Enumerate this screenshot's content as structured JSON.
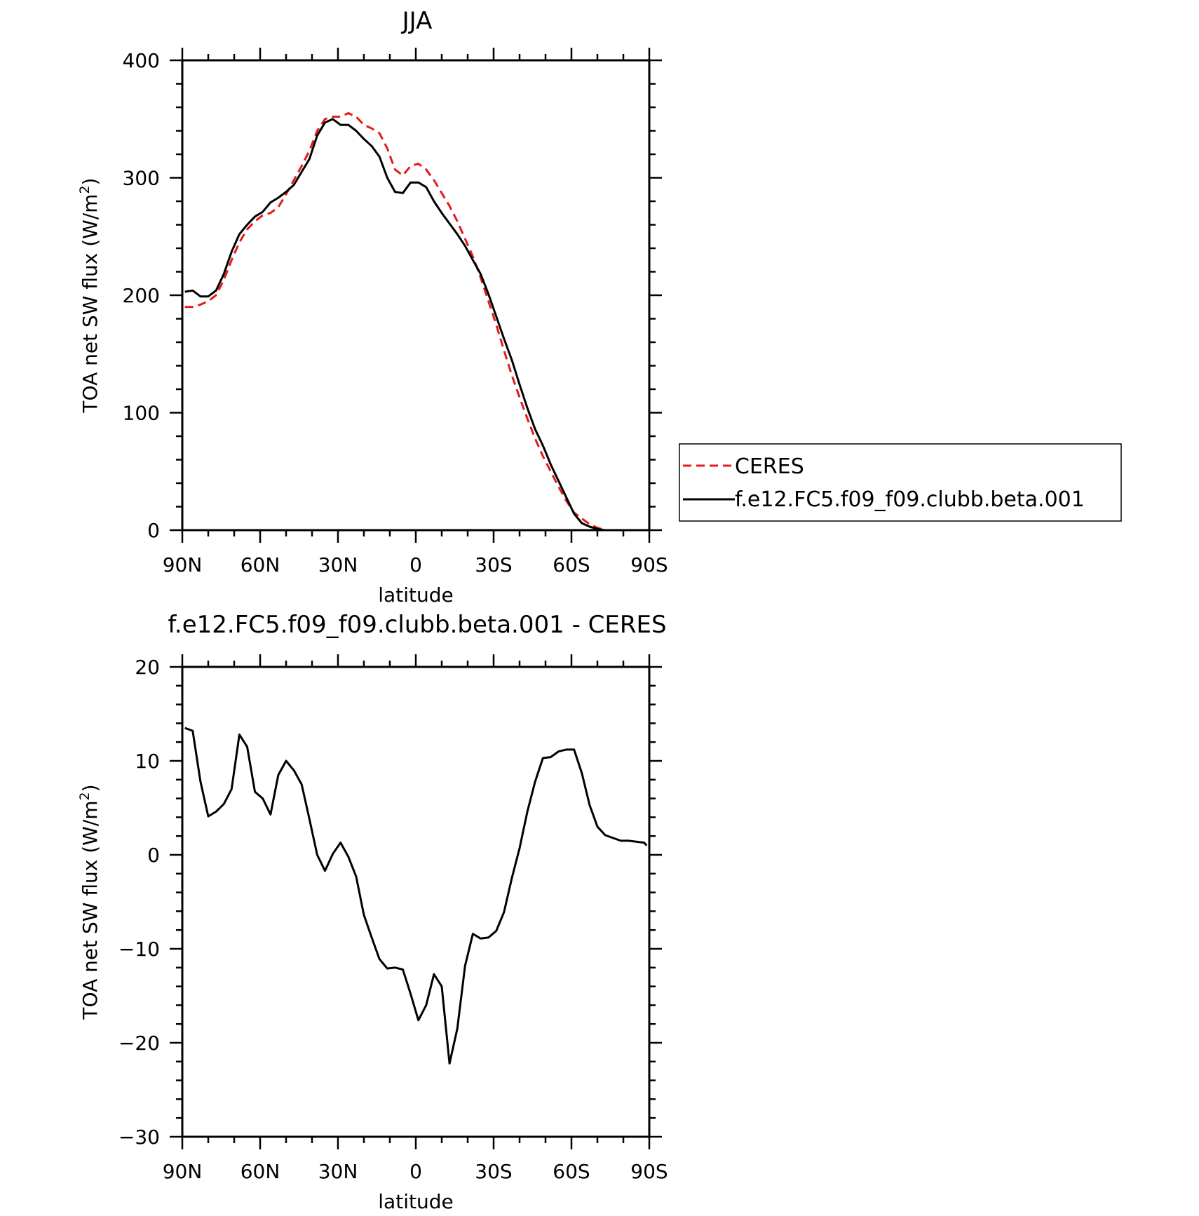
{
  "colors": {
    "ceres": "#e41a1c",
    "model": "#000000",
    "axis": "#000000",
    "background": "#ffffff"
  },
  "legend": {
    "entries": [
      "CERES",
      "f.e12.FC5.f09_f09.clubb.beta.001"
    ],
    "placement": "right of top panel"
  },
  "chart_data": [
    {
      "type": "line",
      "title": "JJA",
      "xlabel": "latitude",
      "ylabel": "TOA net SW flux (W/m²)",
      "ylabel_parts": [
        "TOA net SW flux (W/m",
        "2",
        ")"
      ],
      "xlim": [
        90,
        -90
      ],
      "ylim": [
        0,
        400
      ],
      "xticks": [
        90,
        60,
        30,
        0,
        -30,
        -60,
        -90
      ],
      "xtick_labels": [
        "90N",
        "60N",
        "30N",
        "0",
        "30S",
        "60S",
        "90S"
      ],
      "yticks": [
        0,
        100,
        200,
        300,
        400
      ],
      "ytick_labels": [
        "0",
        "100",
        "200",
        "300",
        "400"
      ],
      "x_minor_step": 10,
      "y_minor_step": 20,
      "grid": false,
      "series": [
        {
          "name": "CERES",
          "style": "dashed",
          "x": [
            89,
            86,
            83,
            80,
            77,
            74,
            71,
            68,
            65,
            62,
            59,
            56,
            53,
            50,
            47,
            44,
            41,
            38,
            35,
            32,
            29,
            26,
            23,
            20,
            17,
            14,
            11,
            8,
            5,
            2,
            -1,
            -4,
            -7,
            -10,
            -13,
            -16,
            -19,
            -22,
            -25,
            -28,
            -31,
            -34,
            -37,
            -40,
            -43,
            -46,
            -49,
            -52,
            -55,
            -58,
            -61,
            -64,
            -67,
            -70,
            -73,
            -76,
            -79,
            -82,
            -85,
            -88,
            -89
          ],
          "y": [
            190,
            190,
            192,
            195,
            200,
            213,
            230,
            245,
            256,
            263,
            268,
            270,
            275,
            286,
            298,
            310,
            323,
            340,
            350,
            352,
            352,
            355,
            352,
            345,
            342,
            338,
            325,
            307,
            302,
            310,
            312,
            307,
            298,
            287,
            276,
            263,
            248,
            233,
            215,
            195,
            175,
            153,
            132,
            113,
            95,
            78,
            63,
            50,
            37,
            25,
            15,
            10,
            5,
            2,
            0,
            0,
            0,
            0,
            0,
            0,
            0
          ]
        },
        {
          "name": "f.e12.FC5.f09_f09.clubb.beta.001",
          "style": "solid",
          "x": [
            89,
            86,
            83,
            80,
            77,
            74,
            71,
            68,
            65,
            62,
            59,
            56,
            53,
            50,
            47,
            44,
            41,
            38,
            35,
            32,
            29,
            26,
            23,
            20,
            17,
            14,
            11,
            8,
            5,
            2,
            -1,
            -4,
            -7,
            -10,
            -13,
            -16,
            -19,
            -22,
            -25,
            -28,
            -31,
            -34,
            -37,
            -40,
            -43,
            -46,
            -49,
            -52,
            -55,
            -58,
            -61,
            -64,
            -67,
            -70,
            -73,
            -76,
            -79,
            -82,
            -85,
            -88,
            -89
          ],
          "y": [
            203,
            204,
            199,
            199,
            204,
            218,
            237,
            252,
            260,
            267,
            271,
            279,
            283,
            288,
            294,
            305,
            316,
            336,
            347,
            350,
            345,
            345,
            340,
            333,
            327,
            318,
            300,
            288,
            287,
            296,
            296,
            292,
            280,
            270,
            261,
            252,
            242,
            230,
            218,
            201,
            182,
            163,
            145,
            124,
            104,
            86,
            72,
            56,
            42,
            28,
            14,
            6,
            3,
            1,
            0,
            0,
            0,
            0,
            0,
            0,
            0
          ]
        }
      ]
    },
    {
      "type": "line",
      "title": "f.e12.FC5.f09_f09.clubb.beta.001 - CERES",
      "xlabel": "latitude",
      "ylabel": "TOA net SW flux (W/m²)",
      "ylabel_parts": [
        "TOA net SW flux (W/m",
        "2",
        ")"
      ],
      "xlim": [
        90,
        -90
      ],
      "ylim": [
        -30,
        20
      ],
      "xticks": [
        90,
        60,
        30,
        0,
        -30,
        -60,
        -90
      ],
      "xtick_labels": [
        "90N",
        "60N",
        "30N",
        "0",
        "30S",
        "60S",
        "90S"
      ],
      "yticks": [
        -30,
        -20,
        -10,
        0,
        10,
        20
      ],
      "ytick_labels": [
        "−30",
        "−20",
        "−10",
        "0",
        "10",
        "20"
      ],
      "x_minor_step": 10,
      "y_minor_step": 2,
      "grid": false,
      "series": [
        {
          "name": "f.e12.FC5.f09_f09.clubb.beta.001 - CERES",
          "style": "solid",
          "x": [
            89,
            86,
            83,
            80,
            77,
            74,
            71,
            68,
            65,
            62,
            59,
            56,
            53,
            50,
            47,
            44,
            41,
            38,
            35,
            32,
            29,
            26,
            23,
            20,
            17,
            14,
            11,
            8,
            5,
            2,
            -1,
            -4,
            -7,
            -10,
            -13,
            -16,
            -19,
            -22,
            -25,
            -28,
            -31,
            -34,
            -37,
            -40,
            -43,
            -46,
            -49,
            -52,
            -55,
            -58,
            -61,
            -64,
            -67,
            -70,
            -73,
            -76,
            -79,
            -82,
            -85,
            -88,
            -89
          ],
          "y": [
            13.5,
            13.2,
            7.8,
            4.1,
            4.6,
            5.4,
            7.0,
            12.8,
            11.5,
            6.7,
            6.0,
            4.3,
            8.5,
            10.0,
            9.0,
            7.5,
            3.8,
            0.0,
            -1.7,
            0.1,
            1.3,
            -0.2,
            -2.3,
            -6.4,
            -8.8,
            -11.1,
            -12.1,
            -12.0,
            -12.2,
            -14.8,
            -17.6,
            -16.0,
            -12.7,
            -14.0,
            -22.2,
            -18.5,
            -11.8,
            -8.4,
            -8.9,
            -8.8,
            -8.1,
            -6.1,
            -2.5,
            0.7,
            4.6,
            7.8,
            10.3,
            10.4,
            11.0,
            11.2,
            11.2,
            8.7,
            5.3,
            3.0,
            2.1,
            1.8,
            1.5,
            1.5,
            1.4,
            1.3,
            1.0
          ]
        }
      ]
    }
  ]
}
